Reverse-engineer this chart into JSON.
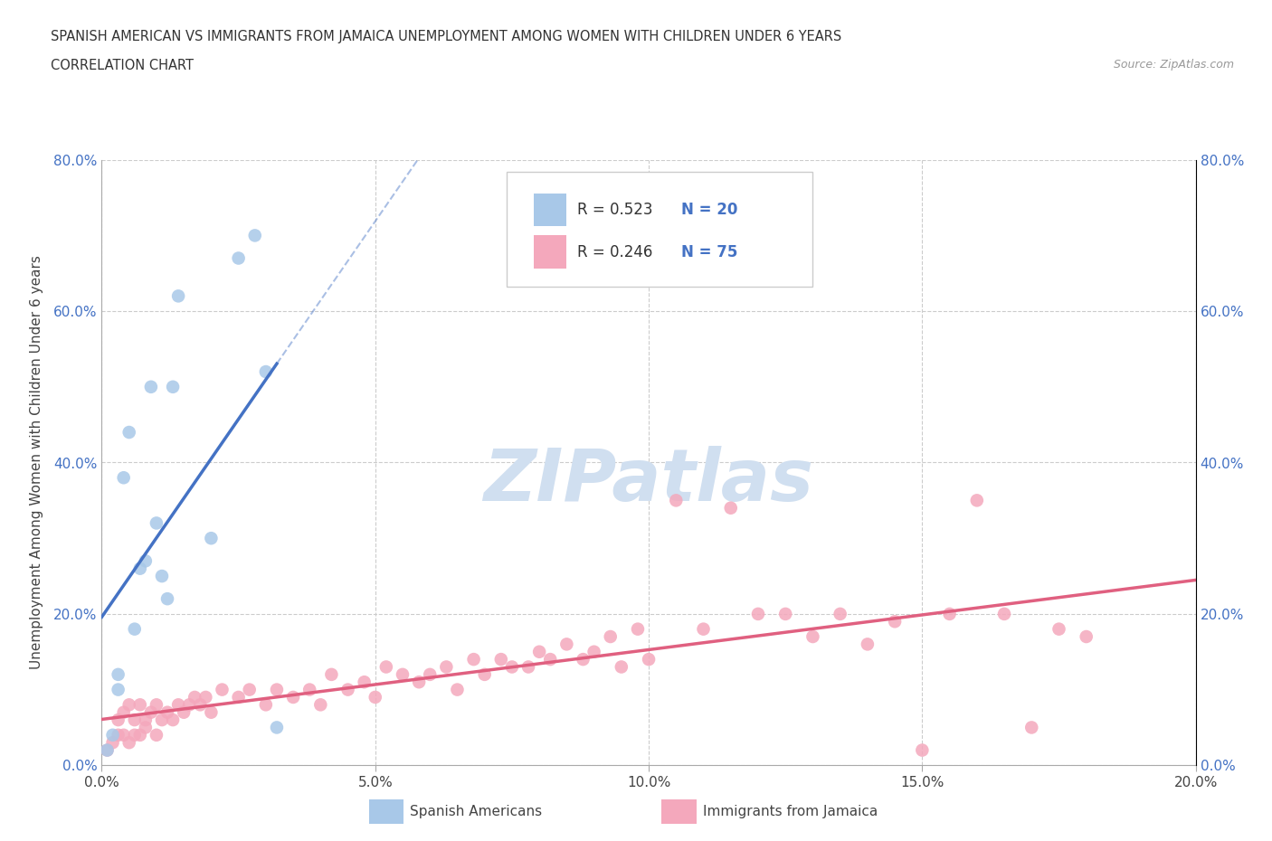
{
  "title_line1": "SPANISH AMERICAN VS IMMIGRANTS FROM JAMAICA UNEMPLOYMENT AMONG WOMEN WITH CHILDREN UNDER 6 YEARS",
  "title_line2": "CORRELATION CHART",
  "source": "Source: ZipAtlas.com",
  "ylabel": "Unemployment Among Women with Children Under 6 years",
  "xlim": [
    0.0,
    0.2
  ],
  "ylim": [
    0.0,
    0.8
  ],
  "xticks": [
    0.0,
    0.05,
    0.1,
    0.15,
    0.2
  ],
  "yticks": [
    0.0,
    0.2,
    0.4,
    0.6,
    0.8
  ],
  "xtick_labels": [
    "0.0%",
    "5.0%",
    "10.0%",
    "15.0%",
    "20.0%"
  ],
  "ytick_labels": [
    "0.0%",
    "20.0%",
    "40.0%",
    "60.0%",
    "80.0%"
  ],
  "legend_r1": "R = 0.523",
  "legend_n1": "N = 20",
  "legend_r2": "R = 0.246",
  "legend_n2": "N = 75",
  "color_blue": "#a8c8e8",
  "color_pink": "#f4a8bc",
  "line_blue": "#4472c4",
  "line_pink": "#e06080",
  "watermark_text": "ZIPatlas",
  "watermark_color": "#d0dff0",
  "blue_label": "Spanish Americans",
  "pink_label": "Immigrants from Jamaica",
  "blue_scatter_x": [
    0.001,
    0.002,
    0.003,
    0.003,
    0.004,
    0.005,
    0.006,
    0.007,
    0.008,
    0.009,
    0.01,
    0.011,
    0.012,
    0.013,
    0.014,
    0.02,
    0.025,
    0.028,
    0.03,
    0.032
  ],
  "blue_scatter_y": [
    0.02,
    0.04,
    0.1,
    0.12,
    0.38,
    0.44,
    0.18,
    0.26,
    0.27,
    0.5,
    0.32,
    0.25,
    0.22,
    0.5,
    0.62,
    0.3,
    0.67,
    0.7,
    0.52,
    0.05
  ],
  "pink_scatter_x": [
    0.001,
    0.002,
    0.003,
    0.003,
    0.004,
    0.004,
    0.005,
    0.005,
    0.006,
    0.006,
    0.007,
    0.007,
    0.008,
    0.008,
    0.009,
    0.01,
    0.01,
    0.011,
    0.012,
    0.013,
    0.014,
    0.015,
    0.016,
    0.017,
    0.018,
    0.019,
    0.02,
    0.022,
    0.025,
    0.027,
    0.03,
    0.032,
    0.035,
    0.038,
    0.04,
    0.042,
    0.045,
    0.048,
    0.05,
    0.052,
    0.055,
    0.058,
    0.06,
    0.063,
    0.065,
    0.068,
    0.07,
    0.073,
    0.075,
    0.078,
    0.08,
    0.082,
    0.085,
    0.088,
    0.09,
    0.093,
    0.095,
    0.098,
    0.1,
    0.105,
    0.11,
    0.115,
    0.12,
    0.125,
    0.13,
    0.135,
    0.14,
    0.145,
    0.15,
    0.155,
    0.16,
    0.165,
    0.17,
    0.175,
    0.18
  ],
  "pink_scatter_y": [
    0.02,
    0.03,
    0.04,
    0.06,
    0.04,
    0.07,
    0.03,
    0.08,
    0.04,
    0.06,
    0.04,
    0.08,
    0.05,
    0.06,
    0.07,
    0.04,
    0.08,
    0.06,
    0.07,
    0.06,
    0.08,
    0.07,
    0.08,
    0.09,
    0.08,
    0.09,
    0.07,
    0.1,
    0.09,
    0.1,
    0.08,
    0.1,
    0.09,
    0.1,
    0.08,
    0.12,
    0.1,
    0.11,
    0.09,
    0.13,
    0.12,
    0.11,
    0.12,
    0.13,
    0.1,
    0.14,
    0.12,
    0.14,
    0.13,
    0.13,
    0.15,
    0.14,
    0.16,
    0.14,
    0.15,
    0.17,
    0.13,
    0.18,
    0.14,
    0.35,
    0.18,
    0.34,
    0.2,
    0.2,
    0.17,
    0.2,
    0.16,
    0.19,
    0.02,
    0.2,
    0.35,
    0.2,
    0.05,
    0.18,
    0.17
  ]
}
